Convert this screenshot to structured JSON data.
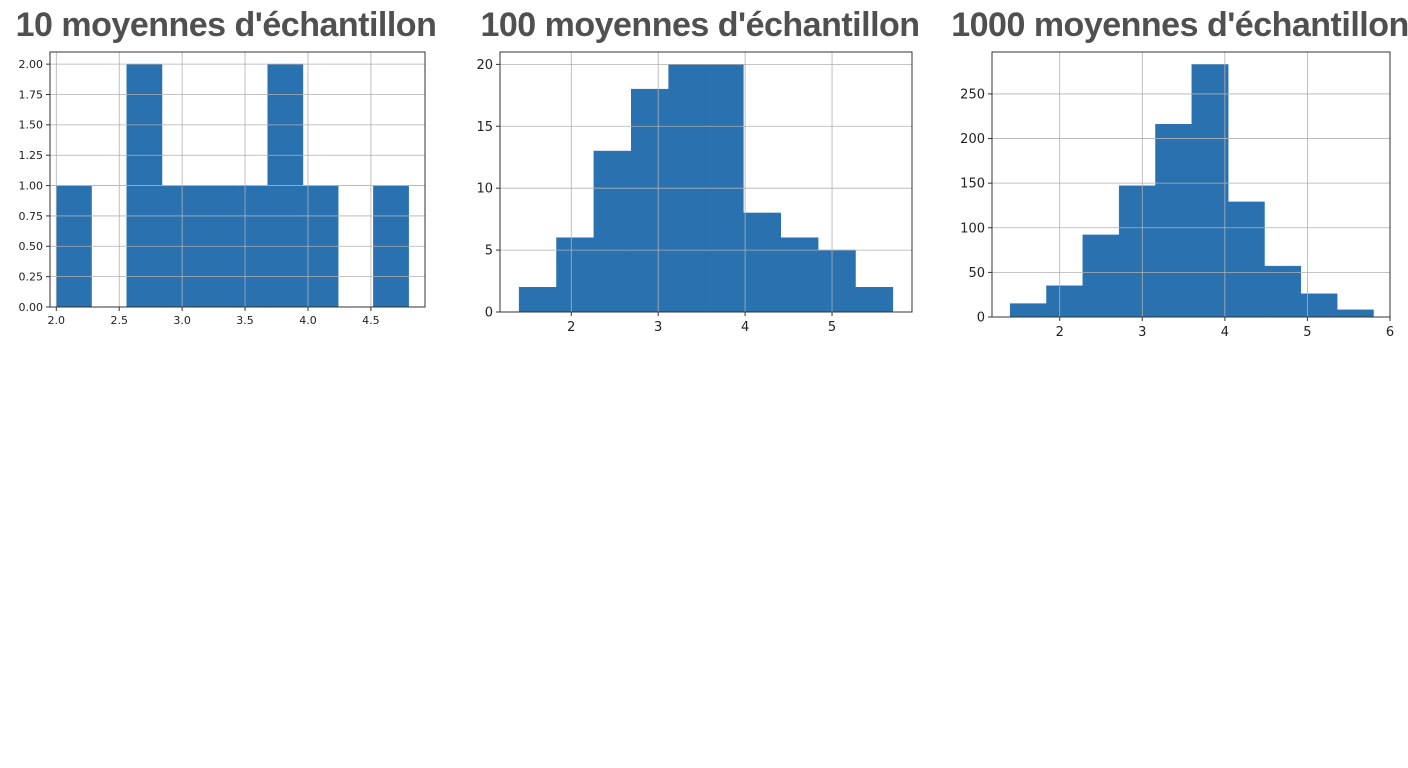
{
  "chart_data": [
    {
      "type": "bar",
      "title": "10 moyennes d'échantillon",
      "bin_edges": [
        2.0,
        2.28,
        2.56,
        2.84,
        3.12,
        3.4,
        3.68,
        3.96,
        4.24,
        4.52,
        4.8
      ],
      "values": [
        1,
        0,
        2,
        1,
        1,
        1,
        2,
        1,
        0,
        1
      ],
      "xlim": [
        1.95,
        4.93
      ],
      "ylim": [
        0,
        2.1
      ],
      "xticks": [
        2.0,
        2.5,
        3.0,
        3.5,
        4.0,
        4.5
      ],
      "xtick_labels": [
        "2.0",
        "2.5",
        "3.0",
        "3.5",
        "4.0",
        "4.5"
      ],
      "yticks": [
        0,
        0.25,
        0.5,
        0.75,
        1.0,
        1.25,
        1.5,
        1.75,
        2.0
      ],
      "ytick_labels": [
        "0.00",
        "0.25",
        "0.50",
        "0.75",
        "1.00",
        "1.25",
        "1.50",
        "1.75",
        "2.00"
      ],
      "grid": true,
      "color": "#2a71b0"
    },
    {
      "type": "bar",
      "title": "100 moyennes d'échantillon",
      "bin_edges": [
        1.4,
        1.83,
        2.26,
        2.69,
        3.12,
        3.55,
        3.98,
        4.41,
        4.84,
        5.27,
        5.7
      ],
      "values": [
        2,
        6,
        13,
        18,
        20,
        20,
        8,
        6,
        5,
        2
      ],
      "xlim": [
        1.18,
        5.92
      ],
      "ylim": [
        0,
        21
      ],
      "xticks": [
        2,
        3,
        4,
        5
      ],
      "xtick_labels": [
        "2",
        "3",
        "4",
        "5"
      ],
      "yticks": [
        0,
        5,
        10,
        15,
        20
      ],
      "ytick_labels": [
        "0",
        "5",
        "10",
        "15",
        "20"
      ],
      "grid": true,
      "color": "#2a71b0"
    },
    {
      "type": "bar",
      "title": "1000 moyennes d'échantillon",
      "bin_edges": [
        1.4,
        1.84,
        2.28,
        2.72,
        3.16,
        3.6,
        4.04,
        4.48,
        4.92,
        5.36,
        5.8
      ],
      "values": [
        15,
        35,
        92,
        147,
        216,
        283,
        129,
        57,
        26,
        8
      ],
      "xlim": [
        1.18,
        6.0
      ],
      "ylim": [
        0,
        297
      ],
      "xticks": [
        2,
        3,
        4,
        5,
        6
      ],
      "xtick_labels": [
        "2",
        "3",
        "4",
        "5",
        "6"
      ],
      "yticks": [
        0,
        50,
        100,
        150,
        200,
        250
      ],
      "ytick_labels": [
        "0",
        "50",
        "100",
        "150",
        "200",
        "250"
      ],
      "grid": true,
      "color": "#2a71b0"
    }
  ]
}
